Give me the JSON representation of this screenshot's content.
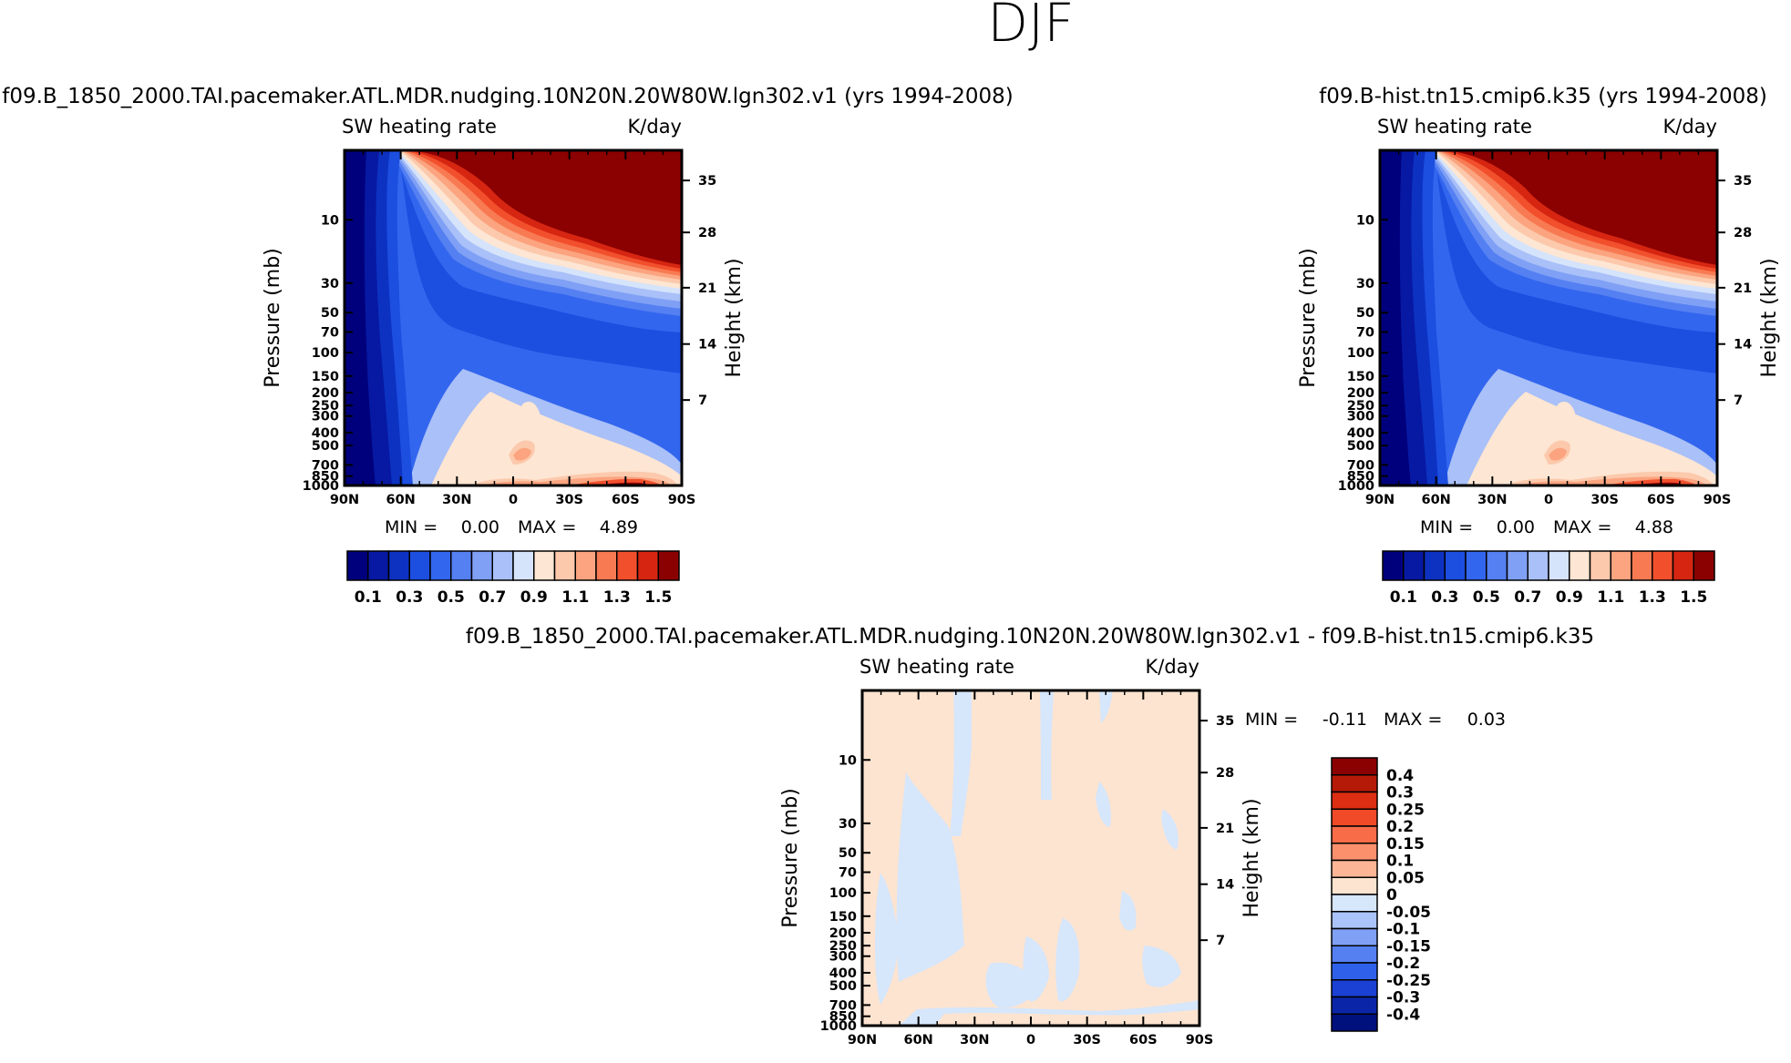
{
  "figure_title": "DJF",
  "chart_data": [
    {
      "type": "heatmap",
      "title": "f09.B_1850_2000.TAI.pacemaker.ATL.MDR.nudging.10N20N.20W80W.lgn302.v1 (yrs 1994-2008)",
      "left_string": "SW heating rate",
      "right_string": "K/day",
      "xlabel": "",
      "ylabel": "Pressure (mb)",
      "ylabel_right": "Height (km)",
      "x_ticks": [
        "90N",
        "60N",
        "30N",
        "0",
        "30S",
        "60S",
        "90S"
      ],
      "y_ticks": [
        "10",
        "30",
        "50",
        "70",
        "100",
        "150",
        "200",
        "250",
        "300",
        "400",
        "500",
        "700",
        "850",
        "1000"
      ],
      "height_ticks": [
        "35",
        "28",
        "21",
        "14",
        "7"
      ],
      "ylim": [
        1000,
        3
      ],
      "min_label": "MIN =",
      "min_value": "0.00",
      "max_label": "MAX =",
      "max_value": "4.89",
      "colorbar": {
        "labels": [
          "0.1",
          "0.3",
          "0.5",
          "0.7",
          "0.9",
          "1.1",
          "1.3",
          "1.5"
        ],
        "levels": [
          0.1,
          0.2,
          0.3,
          0.4,
          0.5,
          0.6,
          0.7,
          0.8,
          0.9,
          1.0,
          1.1,
          1.2,
          1.3,
          1.4,
          1.5
        ],
        "colors": [
          "#00007d",
          "#0719a2",
          "#0d32c2",
          "#1c4ee0",
          "#3366ee",
          "#5580f2",
          "#7fa0f5",
          "#a9c0f8",
          "#d5e3fb",
          "#fde6d3",
          "#fcc9ac",
          "#fba47f",
          "#f87a53",
          "#f2502d",
          "#d62612",
          "#8b0000"
        ]
      }
    },
    {
      "type": "heatmap",
      "title": "f09.B-hist.tn15.cmip6.k35 (yrs 1994-2008)",
      "left_string": "SW heating rate",
      "right_string": "K/day",
      "xlabel": "",
      "ylabel": "Pressure (mb)",
      "ylabel_right": "Height (km)",
      "x_ticks": [
        "90N",
        "60N",
        "30N",
        "0",
        "30S",
        "60S",
        "90S"
      ],
      "y_ticks": [
        "10",
        "30",
        "50",
        "70",
        "100",
        "150",
        "200",
        "250",
        "300",
        "400",
        "500",
        "700",
        "850",
        "1000"
      ],
      "height_ticks": [
        "35",
        "28",
        "21",
        "14",
        "7"
      ],
      "ylim": [
        1000,
        3
      ],
      "min_label": "MIN =",
      "min_value": "0.00",
      "max_label": "MAX =",
      "max_value": "4.88",
      "colorbar": {
        "labels": [
          "0.1",
          "0.3",
          "0.5",
          "0.7",
          "0.9",
          "1.1",
          "1.3",
          "1.5"
        ],
        "levels": [
          0.1,
          0.2,
          0.3,
          0.4,
          0.5,
          0.6,
          0.7,
          0.8,
          0.9,
          1.0,
          1.1,
          1.2,
          1.3,
          1.4,
          1.5
        ],
        "colors": [
          "#00007d",
          "#0719a2",
          "#0d32c2",
          "#1c4ee0",
          "#3366ee",
          "#5580f2",
          "#7fa0f5",
          "#a9c0f8",
          "#d5e3fb",
          "#fde6d3",
          "#fcc9ac",
          "#fba47f",
          "#f87a53",
          "#f2502d",
          "#d62612",
          "#8b0000"
        ]
      }
    },
    {
      "type": "heatmap",
      "title": "f09.B_1850_2000.TAI.pacemaker.ATL.MDR.nudging.10N20N.20W80W.lgn302.v1 - f09.B-hist.tn15.cmip6.k35",
      "left_string": "SW heating rate",
      "right_string": "K/day",
      "xlabel": "",
      "ylabel": "Pressure (mb)",
      "ylabel_right": "Height (km)",
      "x_ticks": [
        "90N",
        "60N",
        "30N",
        "0",
        "30S",
        "60S",
        "90S"
      ],
      "y_ticks": [
        "10",
        "30",
        "50",
        "70",
        "100",
        "150",
        "200",
        "250",
        "300",
        "400",
        "500",
        "700",
        "850",
        "1000"
      ],
      "height_ticks": [
        "35",
        "28",
        "21",
        "14",
        "7"
      ],
      "ylim": [
        1000,
        3
      ],
      "min_label": "MIN =",
      "min_value": "-0.11",
      "max_label": "MAX =",
      "max_value": "0.03",
      "colorbar": {
        "labels": [
          "0.4",
          "0.3",
          "0.25",
          "0.2",
          "0.15",
          "0.1",
          "0.05",
          "0",
          "-0.05",
          "-0.1",
          "-0.15",
          "-0.2",
          "-0.25",
          "-0.3",
          "-0.4"
        ],
        "colors": [
          "#8b0000",
          "#b51a08",
          "#dc2e12",
          "#f04a28",
          "#f86c48",
          "#fb906d",
          "#fcb595",
          "#fde4d0",
          "#d6e6fb",
          "#aac3f8",
          "#7fa0f5",
          "#5580f2",
          "#2f60ea",
          "#1a40d4",
          "#0b25a8",
          "#00107d"
        ]
      }
    }
  ]
}
